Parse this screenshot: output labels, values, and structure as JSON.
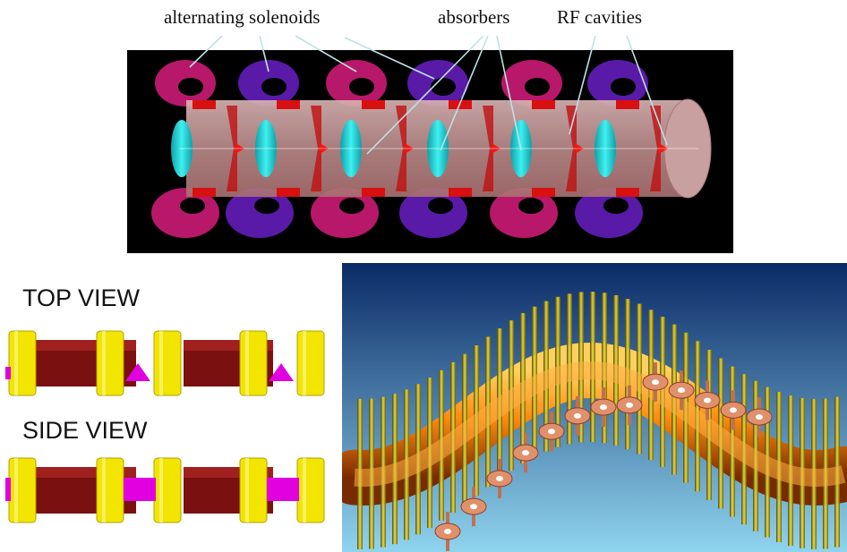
{
  "top_diagram": {
    "labels": {
      "solenoids": "alternating solenoids",
      "absorbers": "absorbers",
      "rf_cavities": "RF cavities"
    },
    "colors": {
      "background": "#000000",
      "solenoid_a": "#b8186a",
      "solenoid_b": "#5a1aa8",
      "absorber": "#1fd8dc",
      "rf_cavity": "#d91010",
      "beam_pipe": "#c8a0a0",
      "leader_line": "#c0e0e6"
    }
  },
  "bottom_left": {
    "top_view_label": "TOP VIEW",
    "side_view_label": "SIDE VIEW",
    "colors": {
      "coil": "#f2e600",
      "body": "#7a1010",
      "wedge": "#e000e0"
    }
  },
  "bottom_right": {
    "colors": {
      "sky_top": "#0a2a66",
      "sky_bottom": "#8fd4ee",
      "tube": "#ff7a10",
      "coil": "#d8c800",
      "cavity": "#e0906a"
    }
  }
}
